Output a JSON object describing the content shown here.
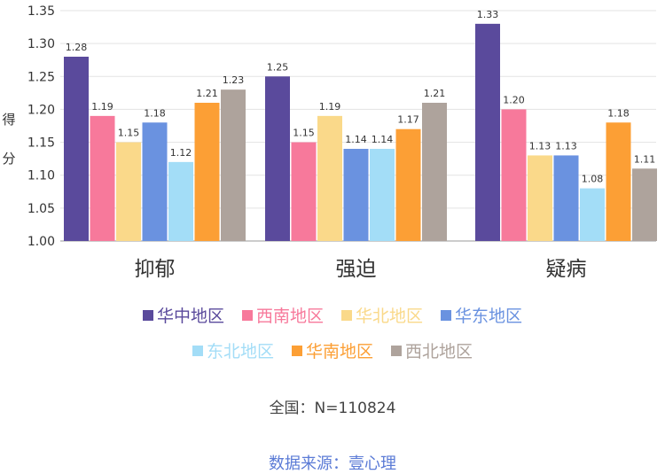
{
  "chart_data": {
    "type": "bar",
    "ylabel": "得分",
    "ylim": [
      1.0,
      1.35
    ],
    "yticks": [
      "1.00",
      "1.05",
      "1.10",
      "1.15",
      "1.20",
      "1.25",
      "1.30",
      "1.35"
    ],
    "categories": [
      "抑郁",
      "强迫",
      "疑病"
    ],
    "grid": true,
    "legend_position": "bottom",
    "series": [
      {
        "name": "华中地区",
        "color": "#5a4a9c",
        "values": [
          1.28,
          1.25,
          1.33
        ]
      },
      {
        "name": "西南地区",
        "color": "#f7799b",
        "values": [
          1.19,
          1.15,
          1.2
        ]
      },
      {
        "name": "华北地区",
        "color": "#fad98a",
        "values": [
          1.15,
          1.19,
          1.13
        ]
      },
      {
        "name": "华东地区",
        "color": "#6a92e0",
        "values": [
          1.18,
          1.14,
          1.13
        ]
      },
      {
        "name": "东北地区",
        "color": "#a3ddf7",
        "values": [
          1.12,
          1.14,
          1.08
        ]
      },
      {
        "name": "华南地区",
        "color": "#fc9f35",
        "values": [
          1.21,
          1.17,
          1.18
        ]
      },
      {
        "name": "西北地区",
        "color": "#aea39c",
        "values": [
          1.23,
          1.21,
          1.11
        ]
      }
    ]
  },
  "footer": {
    "total": "全国：N=110824",
    "source": "数据来源：壹心理"
  }
}
